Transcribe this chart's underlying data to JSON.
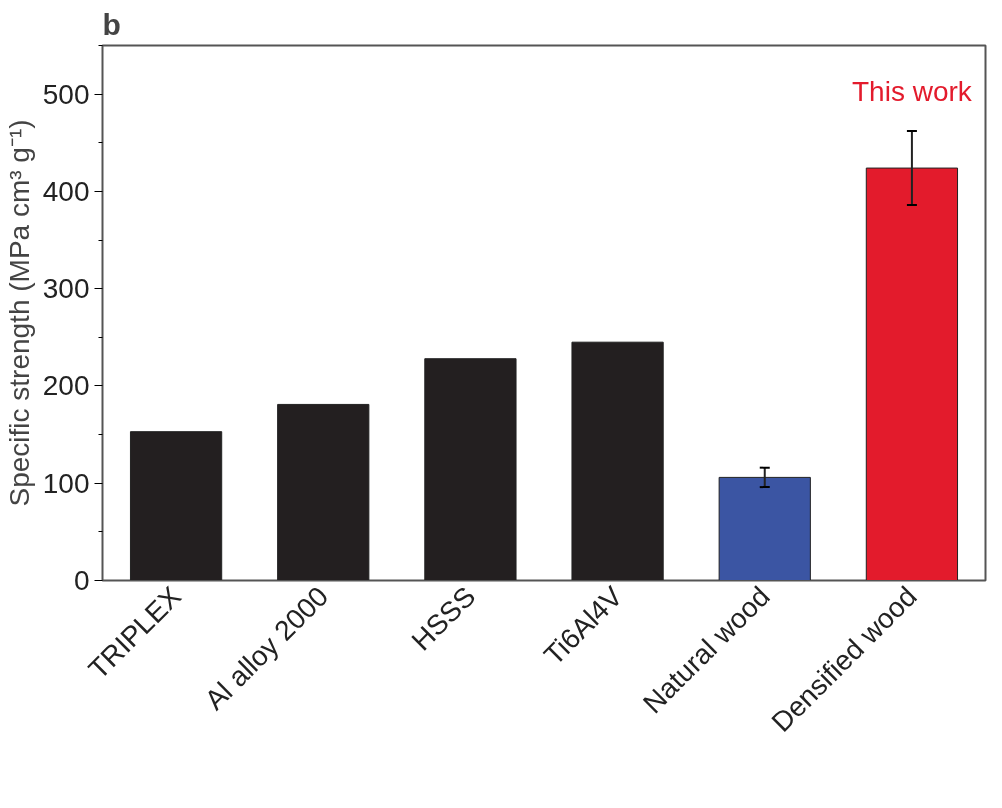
{
  "chart_data": {
    "type": "bar",
    "title": "b",
    "ylabel": "Specific strength (MPa cm³ g⁻¹)",
    "categories": [
      "TRIPLEX",
      "Al alloy 2000",
      "HSSS",
      "Ti6Al4V",
      "Natural wood",
      "Densified wood"
    ],
    "values": [
      153,
      181,
      228,
      245,
      106,
      424
    ],
    "colors": [
      "#231f20",
      "#231f20",
      "#231f20",
      "#231f20",
      "#3b55a3",
      "#e31b2c"
    ],
    "errors": [
      null,
      null,
      null,
      null,
      10,
      38
    ],
    "ylim": [
      0,
      550
    ],
    "yticks": [
      0,
      100,
      200,
      300,
      400,
      500
    ],
    "grid": false,
    "annotations": [
      "This work"
    ]
  }
}
